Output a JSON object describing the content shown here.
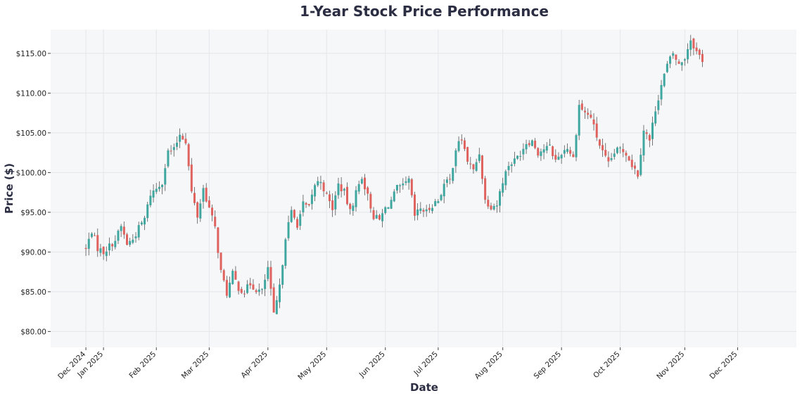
{
  "chart_data": {
    "type": "candlestick",
    "title": "1-Year Stock Price Performance",
    "xlabel": "Date",
    "ylabel": "Price ($)",
    "ylim": [
      78.0,
      118.0
    ],
    "grid": true,
    "colors": {
      "up": "#3fa7a0",
      "down": "#e0625e",
      "wick": "#555555",
      "plot_bg": "#f6f7f9",
      "grid": "#e4e6ea",
      "text": "#2b2d42"
    },
    "y_ticks": [
      {
        "value": 80,
        "label": "$80.00"
      },
      {
        "value": 85,
        "label": "$85.00"
      },
      {
        "value": 90,
        "label": "$90.00"
      },
      {
        "value": 95,
        "label": "$95.00"
      },
      {
        "value": 100,
        "label": "$100.00"
      },
      {
        "value": 105,
        "label": "$105.00"
      },
      {
        "value": 110,
        "label": "$110.00"
      },
      {
        "value": 115,
        "label": "$115.00"
      }
    ],
    "x_ticks": [
      {
        "day": 0,
        "label": "Dec 2024"
      },
      {
        "day": 3,
        "label": "Jan 2025"
      },
      {
        "day": 12,
        "label": "Feb 2025"
      },
      {
        "day": 21,
        "label": "Mar 2025"
      },
      {
        "day": 31,
        "label": "Apr 2025"
      },
      {
        "day": 41,
        "label": "May 2025"
      },
      {
        "day": 51,
        "label": "Jun 2025"
      },
      {
        "day": 60,
        "label": "Jul 2025"
      },
      {
        "day": 71,
        "label": "Aug 2025"
      },
      {
        "day": 81,
        "label": "Sep 2025"
      },
      {
        "day": 91,
        "label": "Oct 2025"
      },
      {
        "day": 102,
        "label": "Nov 2025"
      },
      {
        "day": 111,
        "label": "Dec 2025"
      }
    ],
    "x_range": [
      -6,
      121
    ],
    "anchors": [
      [
        0,
        90.3
      ],
      [
        1,
        92.7
      ],
      [
        2,
        90.5
      ],
      [
        3,
        90.0
      ],
      [
        5,
        91.5
      ],
      [
        6,
        93.2
      ],
      [
        7,
        91.0
      ],
      [
        8,
        91.6
      ],
      [
        9,
        93.0
      ],
      [
        10,
        94.2
      ],
      [
        11,
        97.3
      ],
      [
        12,
        98.0
      ],
      [
        13,
        98.9
      ],
      [
        14,
        102.6
      ],
      [
        15,
        102.8
      ],
      [
        16,
        104.9
      ],
      [
        17,
        104.0
      ],
      [
        18,
        97.5
      ],
      [
        19,
        94.5
      ],
      [
        20,
        98.0
      ],
      [
        21,
        95.5
      ],
      [
        22,
        93.0
      ],
      [
        23,
        87.5
      ],
      [
        24,
        84.8
      ],
      [
        25,
        87.2
      ],
      [
        26,
        85.5
      ],
      [
        27,
        85.0
      ],
      [
        28,
        86.0
      ],
      [
        29,
        85.3
      ],
      [
        30,
        85.0
      ],
      [
        31,
        88.0
      ],
      [
        32,
        82.0
      ],
      [
        33,
        85.5
      ],
      [
        34,
        92.0
      ],
      [
        35,
        95.0
      ],
      [
        36,
        93.5
      ],
      [
        37,
        96.0
      ],
      [
        38,
        95.5
      ],
      [
        39,
        98.5
      ],
      [
        40,
        99.0
      ],
      [
        41,
        97.0
      ],
      [
        42,
        95.5
      ],
      [
        43,
        98.5
      ],
      [
        44,
        97.5
      ],
      [
        45,
        95.0
      ],
      [
        46,
        97.5
      ],
      [
        47,
        99.5
      ],
      [
        48,
        97.0
      ],
      [
        49,
        94.5
      ],
      [
        50,
        94.0
      ],
      [
        51,
        95.5
      ],
      [
        52,
        96.5
      ],
      [
        53,
        98.0
      ],
      [
        54,
        98.2
      ],
      [
        55,
        99.0
      ],
      [
        56,
        94.5
      ],
      [
        57,
        95.5
      ],
      [
        58,
        95.0
      ],
      [
        59,
        96.0
      ],
      [
        60,
        96.5
      ],
      [
        61,
        98.5
      ],
      [
        62,
        99.0
      ],
      [
        63,
        103.0
      ],
      [
        64,
        104.2
      ],
      [
        65,
        101.5
      ],
      [
        66,
        100.2
      ],
      [
        67,
        102.5
      ],
      [
        68,
        96.5
      ],
      [
        69,
        95.8
      ],
      [
        70,
        96.0
      ],
      [
        71,
        99.0
      ],
      [
        72,
        101.0
      ],
      [
        73,
        101.5
      ],
      [
        74,
        102.5
      ],
      [
        75,
        103.8
      ],
      [
        76,
        104.0
      ],
      [
        77,
        102.5
      ],
      [
        78,
        103.0
      ],
      [
        79,
        103.2
      ],
      [
        80,
        101.5
      ],
      [
        81,
        102.5
      ],
      [
        82,
        103.2
      ],
      [
        83,
        101.8
      ],
      [
        84,
        108.5
      ],
      [
        85,
        107.5
      ],
      [
        86,
        107.0
      ],
      [
        87,
        104.5
      ],
      [
        88,
        102.5
      ],
      [
        89,
        101.0
      ],
      [
        90,
        102.5
      ],
      [
        91,
        103.0
      ],
      [
        92,
        102.5
      ],
      [
        93,
        101.0
      ],
      [
        94,
        99.8
      ],
      [
        95,
        105.5
      ],
      [
        96,
        104.0
      ],
      [
        97,
        108.0
      ],
      [
        98,
        111.0
      ],
      [
        99,
        113.5
      ],
      [
        100,
        115.0
      ],
      [
        101,
        113.5
      ],
      [
        102,
        114.5
      ],
      [
        103,
        116.8
      ],
      [
        104,
        115.2
      ],
      [
        105,
        114.2
      ]
    ]
  }
}
